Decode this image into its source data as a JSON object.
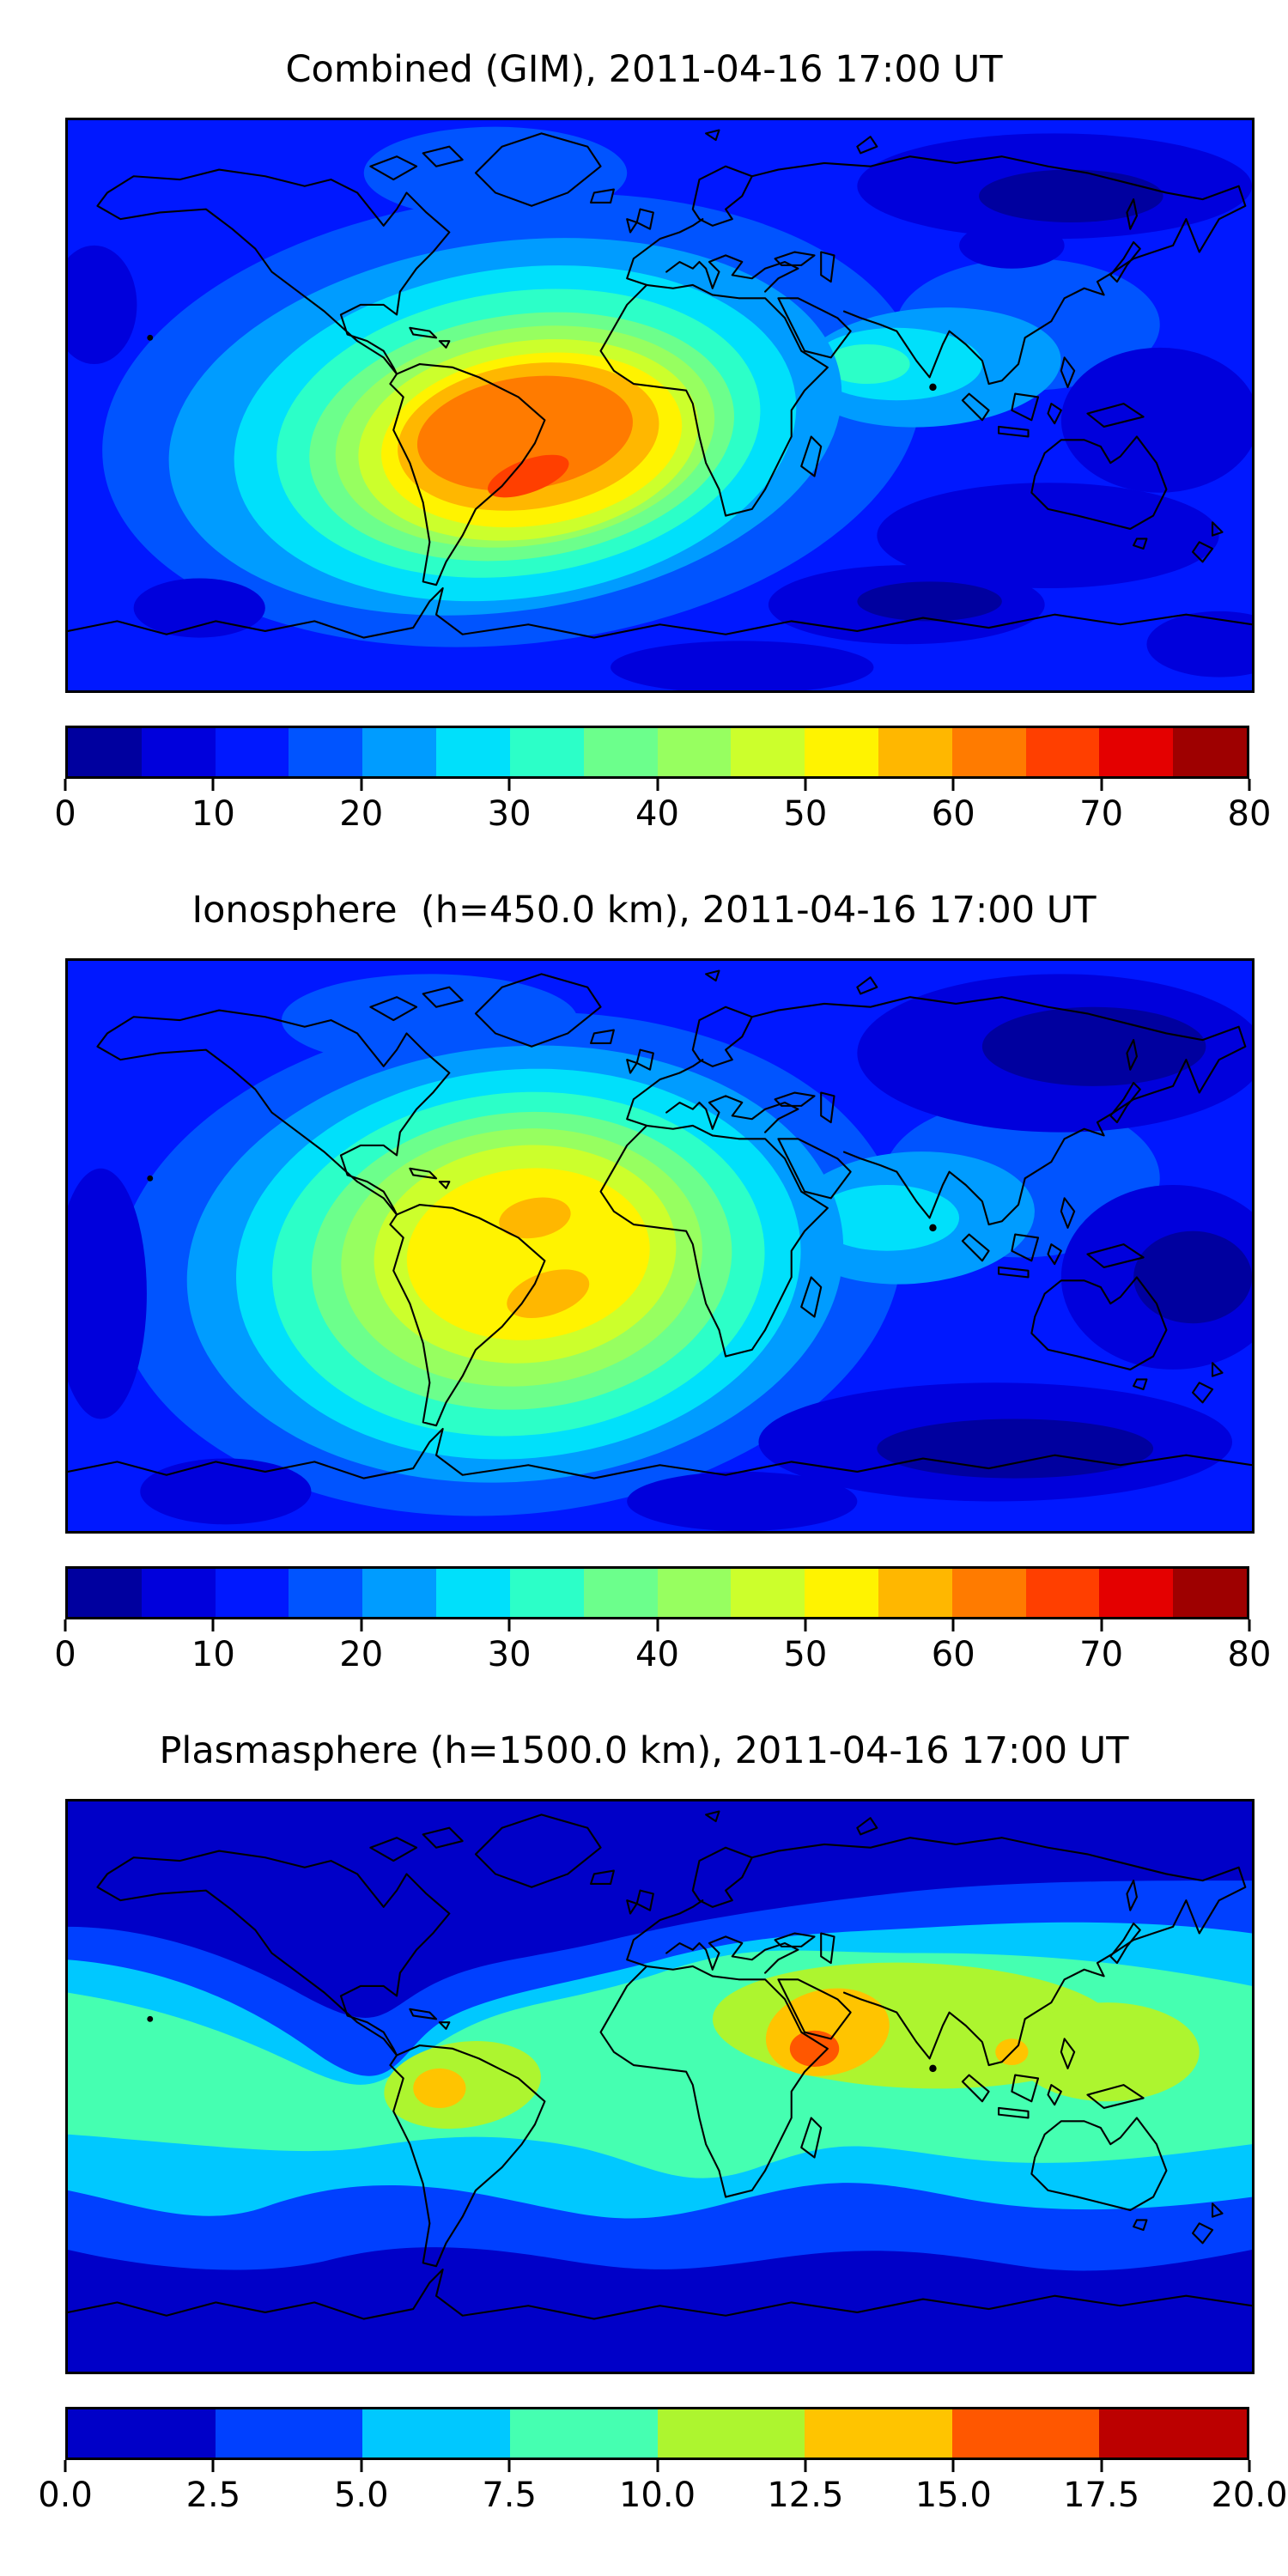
{
  "figure": {
    "background": "#ffffff",
    "text_color": "#000000",
    "colormap": "jet (discrete contourf bands)"
  },
  "panels": [
    {
      "id": "combined",
      "title": "Combined (GIM), 2011-04-16 17:00 UT",
      "colorbar": {
        "min": 0,
        "max": 80,
        "step": 5,
        "tick_labels": [
          "0",
          "10",
          "20",
          "30",
          "40",
          "50",
          "60",
          "70",
          "80"
        ],
        "segment_colors": [
          "#00009F",
          "#0000DC",
          "#0018FF",
          "#0054FF",
          "#009CFF",
          "#00E0FB",
          "#2CFFC8",
          "#6CFF8C",
          "#97FF60",
          "#CCFF2C",
          "#FFF300",
          "#FFB700",
          "#FF7B00",
          "#FF3F00",
          "#E40000",
          "#9E0000"
        ]
      }
    },
    {
      "id": "ionosphere",
      "title": "Ionosphere  (h=450.0 km), 2011-04-16 17:00 UT",
      "colorbar": {
        "min": 0,
        "max": 80,
        "step": 5,
        "tick_labels": [
          "0",
          "10",
          "20",
          "30",
          "40",
          "50",
          "60",
          "70",
          "80"
        ],
        "segment_colors": [
          "#00009F",
          "#0000DC",
          "#0018FF",
          "#0054FF",
          "#009CFF",
          "#00E0FB",
          "#2CFFC8",
          "#6CFF8C",
          "#97FF60",
          "#CCFF2C",
          "#FFF300",
          "#FFB700",
          "#FF7B00",
          "#FF3F00",
          "#E40000",
          "#9E0000"
        ]
      }
    },
    {
      "id": "plasmasphere",
      "title": "Plasmasphere (h=1500.0 km), 2011-04-16 17:00 UT",
      "colorbar": {
        "min": 0,
        "max": 20,
        "step": 2.5,
        "tick_labels": [
          "0.0",
          "2.5",
          "5.0",
          "7.5",
          "10.0",
          "12.5",
          "15.0",
          "17.5",
          "20.0"
        ],
        "segment_colors": [
          "#0000C8",
          "#0040FF",
          "#00C8FF",
          "#45FFB1",
          "#ADF52F",
          "#FFC400",
          "#FF5700",
          "#BC0000"
        ]
      }
    }
  ],
  "chart_data": [
    {
      "type": "heatmap",
      "title": "Combined (GIM), 2011-04-16 17:00 UT",
      "datetime_ut": "2011-04-16 17:00",
      "projection": "equirectangular world map, lon -180..180, lat -90..90, black coastlines",
      "colormap": "jet, discrete filled contours",
      "contour_levels": [
        0,
        5,
        10,
        15,
        20,
        25,
        30,
        35,
        40,
        45,
        50,
        55,
        60,
        65,
        70,
        75,
        80
      ],
      "colorbar_ticks": [
        0,
        10,
        20,
        30,
        40,
        50,
        60,
        70,
        80
      ],
      "value_range": [
        0,
        80
      ],
      "max_approx": {
        "value": "65-70",
        "lon": -40,
        "lat": -22,
        "region": "southeastern Brazil / South Atlantic"
      },
      "features": [
        {
          "name": "large dayside enhancement",
          "value": "55-70",
          "region": "South America and tropical Atlantic, centered near lon -45, lat -15"
        },
        {
          "name": "concentric bands 20-55",
          "region": "rings spreading over Americas, Atlantic and west Africa"
        },
        {
          "name": "secondary enhancement",
          "value": "25-35",
          "region": "equatorial Indian Ocean / Bay of Bengal near lon 65-85"
        },
        {
          "name": "minima",
          "value": "0-10",
          "regions": [
            "Siberia/high-latitude Asia",
            "southern Indian and Pacific Ocean",
            "far south-east corner"
          ]
        }
      ],
      "grid": false,
      "legend": "horizontal colorbar below map"
    },
    {
      "type": "heatmap",
      "title": "Ionosphere  (h=450.0 km), 2011-04-16 17:00 UT",
      "datetime_ut": "2011-04-16 17:00",
      "projection": "equirectangular world map, lon -180..180, lat -90..90, black coastlines",
      "colormap": "jet, discrete filled contours",
      "contour_levels": [
        0,
        5,
        10,
        15,
        20,
        25,
        30,
        35,
        40,
        45,
        50,
        55,
        60,
        65,
        70,
        75,
        80
      ],
      "colorbar_ticks": [
        0,
        10,
        20,
        30,
        40,
        50,
        60,
        70,
        80
      ],
      "value_range": [
        0,
        80
      ],
      "max_approx": {
        "value": "55-60",
        "region": "two crests of the equatorial anomaly over/near Brazil"
      },
      "features": [
        {
          "name": "northern crest",
          "value": "55-60",
          "lon": -38,
          "lat": 8
        },
        {
          "name": "southern crest",
          "value": "55-60",
          "lon": -34,
          "lat": -15
        },
        {
          "name": "broad 40-55 region",
          "region": "South America and tropical Atlantic"
        },
        {
          "name": "secondary enhancement",
          "value": "20-30",
          "region": "equatorial Indian Ocean near lon 70-80"
        },
        {
          "name": "minima",
          "value": "0-10",
          "regions": [
            "central/east Asia high latitudes",
            "south Indian Ocean",
            "south Pacific"
          ]
        }
      ],
      "grid": false,
      "legend": "horizontal colorbar below map"
    },
    {
      "type": "heatmap",
      "title": "Plasmasphere (h=1500.0 km), 2011-04-16 17:00 UT",
      "datetime_ut": "2011-04-16 17:00",
      "projection": "equirectangular world map, lon -180..180, lat -90..90, black coastlines",
      "colormap": "jet, discrete filled contours",
      "contour_levels": [
        0,
        2.5,
        5,
        7.5,
        10,
        12.5,
        15,
        17.5,
        20
      ],
      "colorbar_ticks": [
        0.0,
        2.5,
        5.0,
        7.5,
        10.0,
        12.5,
        15.0,
        17.5,
        20.0
      ],
      "value_range": [
        0,
        20
      ],
      "max_approx": {
        "value": "15-17.5",
        "lon": 45,
        "lat": 8,
        "region": "Horn of Africa / Gulf of Aden"
      },
      "features": [
        {
          "name": "wavy equatorial band",
          "value": "7.5-10",
          "region": "global belt roughly lat 30N to 20S"
        },
        {
          "name": "enhanced band",
          "value": "10-12.5",
          "region": "Middle East through India to Southeast Asia and a patch over northern South America"
        },
        {
          "name": "local maxima",
          "value": "12.5-15",
          "regions": [
            "Arabia/Horn of Africa",
            "Peru/Bolivia",
            "Malay Peninsula"
          ]
        },
        {
          "name": "core maximum",
          "value": "15-17.5",
          "region": "Horn of Africa"
        },
        {
          "name": "minima",
          "value": "0-2.5",
          "regions": [
            "north polar latitudes",
            "south of lat -40"
          ]
        }
      ],
      "grid": false,
      "legend": "horizontal colorbar below map"
    }
  ]
}
